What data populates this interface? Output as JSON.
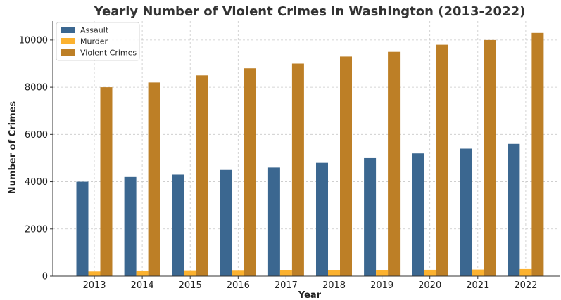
{
  "chart_data": {
    "type": "bar",
    "title": "Yearly Number of Violent Crimes in Washington (2013-2022)",
    "xlabel": "Year",
    "ylabel": "Number of Crimes",
    "categories": [
      "2013",
      "2014",
      "2015",
      "2016",
      "2017",
      "2018",
      "2019",
      "2020",
      "2021",
      "2022"
    ],
    "series": [
      {
        "name": "Assault",
        "color": "#3b6790",
        "values": [
          4000,
          4200,
          4300,
          4500,
          4600,
          4800,
          5000,
          5200,
          5400,
          5600
        ]
      },
      {
        "name": "Murder",
        "color": "#fcb22f",
        "values": [
          200,
          210,
          220,
          230,
          240,
          250,
          260,
          270,
          280,
          300
        ]
      },
      {
        "name": "Violent Crimes",
        "color": "#bd7f26",
        "values": [
          8000,
          8200,
          8500,
          8800,
          9000,
          9300,
          9500,
          9800,
          10000,
          10300
        ]
      }
    ],
    "ylim": [
      0,
      10800
    ],
    "yticks": [
      0,
      2000,
      4000,
      6000,
      8000,
      10000
    ],
    "grid": true,
    "legend_position": "top-left"
  }
}
